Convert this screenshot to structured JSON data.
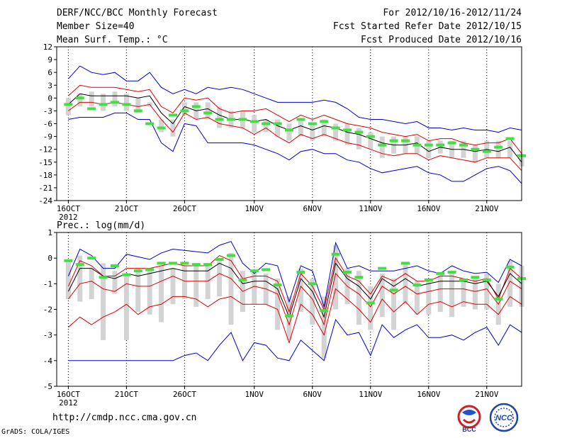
{
  "header": {
    "title": "DERF/NCC/BCC Monthly Forecast",
    "member_size": "Member Size=40",
    "variable": "Mean Surf. Temp.: °C",
    "period": "For 2012/10/16-2012/11/24",
    "started": "Fcst Started Refer Date 2012/10/15",
    "produced": "Fcst Produced Date 2012/10/16"
  },
  "footer": {
    "url": "http://cmdp.ncc.cma.gov.cn",
    "credit": "GrADS: COLA/IGES",
    "logo_bcc": "BCC",
    "logo_ncc": "NCC"
  },
  "colors": {
    "ensemble_bar": "#d3d3d3",
    "climatology": "#44dd44",
    "mean": "#000000",
    "inner_band": "#dd0000",
    "outer_band": "#0000cc",
    "grid": "#000000"
  },
  "chart_data": [
    {
      "id": "temperature",
      "type": "line",
      "title": "Mean Surf. Temp.: °C",
      "ylim": [
        -24,
        12
      ],
      "yticks": [
        12,
        9,
        6,
        3,
        0,
        -3,
        -6,
        -9,
        -12,
        -15,
        -18,
        -21,
        -24
      ],
      "x_start_day": 15,
      "x_end_day": 55,
      "x_ticks": [
        {
          "day": 16,
          "label": "16OCT",
          "sub": "2012"
        },
        {
          "day": 21,
          "label": "21OCT"
        },
        {
          "day": 26,
          "label": "26OCT"
        },
        {
          "day": 32,
          "label": "1NOV"
        },
        {
          "day": 37,
          "label": "6NOV"
        },
        {
          "day": 42,
          "label": "11NOV"
        },
        {
          "day": 47,
          "label": "16NOV"
        },
        {
          "day": 52,
          "label": "21NOV"
        }
      ],
      "days": [
        16,
        17,
        18,
        19,
        20,
        21,
        22,
        23,
        24,
        25,
        26,
        27,
        28,
        29,
        30,
        31,
        32,
        33,
        34,
        35,
        36,
        37,
        38,
        39,
        40,
        41,
        42,
        43,
        44,
        45,
        46,
        47,
        48,
        49,
        50,
        51,
        52,
        53,
        54,
        55
      ],
      "series": [
        {
          "name": "max",
          "color_key": "outer_band",
          "values": [
            4.5,
            7.5,
            6,
            5.5,
            6,
            4,
            4,
            6,
            2.5,
            1,
            2,
            1,
            2.5,
            2,
            2.5,
            2,
            1,
            0,
            -1,
            -1,
            -1,
            -1,
            -0.5,
            -1,
            -2.5,
            -4.5,
            -5,
            -5,
            -5.5,
            -6,
            -5.5,
            -7,
            -7,
            -7.5,
            -7,
            -7.5,
            -7.5,
            -8,
            -7,
            -7.5
          ]
        },
        {
          "name": "upper",
          "color_key": "inner_band",
          "values": [
            0.5,
            3,
            2.5,
            2.5,
            2.5,
            2,
            1.5,
            2,
            -2,
            -3.5,
            0,
            -0.5,
            0,
            -2.5,
            -3.5,
            -3,
            -3,
            -2.5,
            -4,
            -5.5,
            -4,
            -5,
            -4,
            -5,
            -6,
            -6.5,
            -7,
            -8,
            -8.5,
            -9,
            -8.5,
            -10,
            -9.5,
            -9.5,
            -10.5,
            -11,
            -10.5,
            -10.5,
            -9.5,
            -13
          ]
        },
        {
          "name": "mean",
          "color_key": "mean",
          "values": [
            -1.5,
            1,
            0.5,
            0.5,
            0.5,
            0.5,
            0,
            0.5,
            -3.5,
            -6,
            -2,
            -3,
            -2.5,
            -4,
            -5,
            -5,
            -5.5,
            -5,
            -6.5,
            -7.5,
            -6.5,
            -7.5,
            -6.5,
            -7,
            -8,
            -8.5,
            -9.5,
            -10.5,
            -11,
            -11,
            -10.5,
            -12.5,
            -11.5,
            -12,
            -12,
            -12.5,
            -12,
            -12.5,
            -11.5,
            -15
          ]
        },
        {
          "name": "lower",
          "color_key": "inner_band",
          "values": [
            -3,
            -1,
            -1,
            -1.5,
            -1,
            -1.5,
            -2,
            -1.5,
            -5,
            -8,
            -3.5,
            -5,
            -4.5,
            -6,
            -6.5,
            -7,
            -8.5,
            -7,
            -9,
            -10.5,
            -8.5,
            -9.5,
            -8.5,
            -9.5,
            -10.5,
            -11,
            -12,
            -13,
            -13.5,
            -13,
            -13,
            -14.5,
            -13.5,
            -14,
            -14.5,
            -15,
            -14,
            -14,
            -14,
            -17
          ]
        },
        {
          "name": "min",
          "color_key": "outer_band",
          "values": [
            -5,
            -4.5,
            -4.5,
            -4.5,
            -3.5,
            -3.5,
            -5,
            -5,
            -10.5,
            -12.5,
            -6,
            -6.5,
            -10.5,
            -10.5,
            -10.5,
            -10.5,
            -11,
            -12,
            -13,
            -14.5,
            -12.5,
            -12,
            -13,
            -13,
            -14.5,
            -15,
            -16.5,
            -17.5,
            -17,
            -16.5,
            -16,
            -17.5,
            -18,
            -19.5,
            -19.5,
            -18,
            -16.5,
            -16,
            -17,
            -20
          ]
        }
      ],
      "box_ranges": [
        [
          -4,
          0
        ],
        [
          -2,
          1
        ],
        [
          -2,
          1.5
        ],
        [
          -3,
          1
        ],
        [
          -2,
          1.5
        ],
        [
          -3,
          1
        ],
        [
          -3.5,
          0
        ],
        [
          -2,
          -1
        ],
        [
          -8,
          -5
        ],
        [
          -9,
          -5
        ],
        [
          -4,
          -1
        ],
        [
          -5,
          -1
        ],
        [
          -5,
          -1
        ],
        [
          -7,
          -2
        ],
        [
          -7,
          -3
        ],
        [
          -7,
          -3
        ],
        [
          -8,
          -4
        ],
        [
          -8,
          -5
        ],
        [
          -9,
          -5
        ],
        [
          -10,
          -6
        ],
        [
          -9,
          -5
        ],
        [
          -10,
          -6
        ],
        [
          -9,
          -5
        ],
        [
          -10,
          -6
        ],
        [
          -11,
          -6
        ],
        [
          -12,
          -7
        ],
        [
          -12,
          -8
        ],
        [
          -14,
          -9
        ],
        [
          -13,
          -9
        ],
        [
          -13,
          -9
        ],
        [
          -13,
          -9
        ],
        [
          -14,
          -10
        ],
        [
          -13,
          -10
        ],
        [
          -14,
          -10
        ],
        [
          -14,
          -10
        ],
        [
          -15,
          -11
        ],
        [
          -14,
          -10
        ],
        [
          -14,
          -10
        ],
        [
          -14,
          -10
        ],
        [
          -16,
          -13
        ]
      ],
      "climatology": [
        -1.5,
        0,
        -2.5,
        -1.5,
        -1,
        -1.5,
        -3,
        -6,
        -7,
        -4,
        -3,
        -2,
        -3.5,
        -5,
        -5,
        -5,
        -5.5,
        -6,
        -6,
        -7.5,
        -5,
        -6,
        -5.5,
        -7,
        -7.5,
        -8,
        -9,
        -11,
        -10,
        -10,
        -11,
        -11,
        -11,
        -10.5,
        -11,
        -12,
        -12.5,
        -11.5,
        -9.5,
        -13.5
      ]
    },
    {
      "id": "precipitation",
      "type": "line",
      "title": "Prec.: log(mm/d)",
      "ylim": [
        -5,
        1
      ],
      "yticks": [
        1,
        0,
        -1,
        -2,
        -3,
        -4,
        -5
      ],
      "x_start_day": 15,
      "x_end_day": 55,
      "x_ticks": [
        {
          "day": 16,
          "label": "16OCT",
          "sub": "2012"
        },
        {
          "day": 21,
          "label": "21OCT"
        },
        {
          "day": 26,
          "label": "26OCT"
        },
        {
          "day": 32,
          "label": "1NOV"
        },
        {
          "day": 37,
          "label": "6NOV"
        },
        {
          "day": 42,
          "label": "11NOV"
        },
        {
          "day": 47,
          "label": "16NOV"
        },
        {
          "day": 52,
          "label": "21NOV"
        }
      ],
      "days": [
        16,
        17,
        18,
        19,
        20,
        21,
        22,
        23,
        24,
        25,
        26,
        27,
        28,
        29,
        30,
        31,
        32,
        33,
        34,
        35,
        36,
        37,
        38,
        39,
        40,
        41,
        42,
        43,
        44,
        45,
        46,
        47,
        48,
        49,
        50,
        51,
        52,
        53,
        54,
        55
      ],
      "series": [
        {
          "name": "max",
          "color_key": "outer_band",
          "values": [
            -0.7,
            0.35,
            0.1,
            -0.4,
            -0.4,
            0.15,
            0.05,
            -0.05,
            0.2,
            0.35,
            0.3,
            0.25,
            0.2,
            0.5,
            0.65,
            -0.2,
            -0.6,
            -0.2,
            -0.3,
            -1.7,
            -0.3,
            -0.5,
            -1.9,
            0.6,
            -0.4,
            -0.3,
            -0.5,
            -0.5,
            -0.5,
            -0.4,
            -0.3,
            -0.5,
            -0.6,
            -0.3,
            -0.5,
            -0.6,
            -0.55,
            -0.95,
            -0.05,
            -0.3
          ]
        },
        {
          "name": "upper",
          "color_key": "inner_band",
          "values": [
            -1.1,
            -0.1,
            -0.3,
            -0.7,
            -0.7,
            -0.4,
            -0.4,
            -0.4,
            -0.3,
            -0.2,
            -0.3,
            -0.3,
            -0.3,
            0.1,
            -0.1,
            -0.8,
            -0.7,
            -0.7,
            -0.9,
            -2.1,
            -0.6,
            -1.1,
            -2,
            0.0,
            -0.7,
            -0.9,
            -1.4,
            -0.7,
            -0.9,
            -0.6,
            -0.9,
            -0.9,
            -0.7,
            -0.7,
            -0.8,
            -0.9,
            -0.8,
            -1.6,
            -0.4,
            -0.8
          ]
        },
        {
          "name": "mean",
          "color_key": "mean",
          "values": [
            -1.3,
            -0.4,
            -0.4,
            -0.7,
            -0.8,
            -0.6,
            -0.7,
            -0.6,
            -0.5,
            -0.4,
            -0.5,
            -0.5,
            -0.5,
            -0.2,
            -0.4,
            -1,
            -0.9,
            -0.9,
            -1.2,
            -2.3,
            -0.8,
            -1.3,
            -2.3,
            -0.2,
            -0.8,
            -1.1,
            -1.6,
            -0.8,
            -1.1,
            -0.8,
            -1.1,
            -1,
            -0.9,
            -0.9,
            -0.9,
            -1,
            -0.9,
            -1.5,
            -0.6,
            -1
          ]
        },
        {
          "name": "lower",
          "color_key": "inner_band",
          "values": [
            -1.6,
            -1,
            -0.9,
            -1.2,
            -1.3,
            -1,
            -1.1,
            -1.1,
            -0.9,
            -0.7,
            -0.9,
            -0.9,
            -0.9,
            -0.6,
            -0.8,
            -1.3,
            -1.1,
            -1.2,
            -1.4,
            -2.6,
            -1.1,
            -1.6,
            -2.6,
            -0.6,
            -1.1,
            -1.4,
            -1.9,
            -1.1,
            -1.4,
            -1.1,
            -1.4,
            -1.3,
            -1.2,
            -1.2,
            -1.2,
            -1.3,
            -1.2,
            -1.8,
            -0.9,
            -1.2
          ]
        },
        {
          "name": "lowest",
          "color_key": "inner_band",
          "values": [
            -2.7,
            -2.3,
            -2.6,
            -2.3,
            -2.1,
            -1.8,
            -2.2,
            -1.9,
            -1.8,
            -1.5,
            -1.5,
            -1.6,
            -1.9,
            -1.6,
            -1.5,
            -1.8,
            -1.8,
            -1.8,
            -2,
            -3.3,
            -1.8,
            -2.2,
            -3,
            -1.2,
            -1.6,
            -2,
            -2.5,
            -1.6,
            -2.1,
            -1.7,
            -2.2,
            -1.8,
            -1.7,
            -1.9,
            -1.7,
            -1.8,
            -1.8,
            -2.2,
            -1.5,
            -1.8
          ]
        },
        {
          "name": "min",
          "color_key": "outer_band",
          "values": [
            -4,
            -4,
            -4,
            -4,
            -4,
            -4,
            -4,
            -4,
            -4,
            -4,
            -3.8,
            -3.7,
            -4,
            -3.4,
            -2.9,
            -4,
            -3.3,
            -3.4,
            -3.9,
            -4,
            -3.2,
            -3.6,
            -4,
            -2.4,
            -3,
            -2.9,
            -3.8,
            -2.6,
            -3.1,
            -2.8,
            -2.6,
            -3.1,
            -3.1,
            -3,
            -3.2,
            -2.9,
            -2.7,
            -3.4,
            -2.6,
            -2.9
          ]
        }
      ],
      "box_ranges": [
        [
          -1.6,
          -0.1
        ],
        [
          -1.7,
          0.1
        ],
        [
          -1.6,
          -0.4
        ],
        [
          -3.2,
          -0.2
        ],
        [
          -1.4,
          -0.5
        ],
        [
          -3.2,
          -0.6
        ],
        [
          -2.1,
          -0.4
        ],
        [
          -2.2,
          -0.5
        ],
        [
          -2.5,
          -0.3
        ],
        [
          -1.8,
          -0.4
        ],
        [
          -1.6,
          -0.3
        ],
        [
          -1.9,
          -0.2
        ],
        [
          -1.6,
          -0.3
        ],
        [
          -1.5,
          -0.1
        ],
        [
          -2.6,
          0.2
        ],
        [
          -2.1,
          -0.5
        ],
        [
          -1.8,
          -0.5
        ],
        [
          -1.8,
          -0.6
        ],
        [
          -2.8,
          -0.8
        ],
        [
          -3.2,
          -1.5
        ],
        [
          -2.1,
          -0.4
        ],
        [
          -2.6,
          -0.8
        ],
        [
          -3.9,
          -1.5
        ],
        [
          -2,
          0.5
        ],
        [
          -1.8,
          -0.4
        ],
        [
          -2.6,
          -0.5
        ],
        [
          -2.8,
          -1.1
        ],
        [
          -2.3,
          -0.6
        ],
        [
          -2.8,
          -0.8
        ],
        [
          -1.8,
          -0.2
        ],
        [
          -2.2,
          -0.9
        ],
        [
          -2.2,
          -0.9
        ],
        [
          -2.1,
          -0.6
        ],
        [
          -2.3,
          -0.5
        ],
        [
          -1.9,
          -0.8
        ],
        [
          -2,
          -0.7
        ],
        [
          -2,
          -0.6
        ],
        [
          -2.6,
          -1
        ],
        [
          -1.9,
          -0.1
        ],
        [
          -1.9,
          -0.3
        ]
      ],
      "climatology": [
        -0.1,
        -0.25,
        0,
        -0.75,
        -0.3,
        -0.65,
        -0.5,
        -0.45,
        -0.2,
        -0.2,
        -0.2,
        -0.25,
        -0.25,
        -0.05,
        0.1,
        -0.85,
        -0.5,
        -0.45,
        -1.05,
        -2.25,
        -0.55,
        -1.0,
        -2.05,
        0.15,
        -0.55,
        -0.75,
        -1.75,
        -0.4,
        -1.25,
        -0.2,
        -1.05,
        -0.85,
        -0.6,
        -0.55,
        -0.85,
        -0.75,
        -0.85,
        -1.6,
        -0.35,
        -0.8
      ]
    }
  ]
}
